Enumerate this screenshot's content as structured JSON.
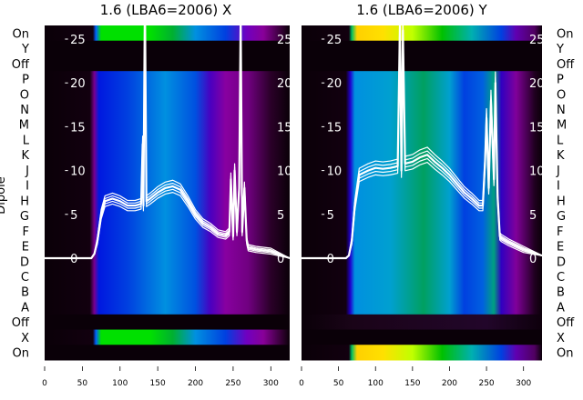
{
  "chart_data": [
    {
      "type": "heatmap",
      "title": "1.6 (LBA6=2006) X",
      "ylabel": "Dipole",
      "row_labels": [
        "On",
        "Y",
        "Off",
        "P",
        "O",
        "N",
        "M",
        "L",
        "K",
        "J",
        "I",
        "H",
        "G",
        "F",
        "E",
        "D",
        "C",
        "B",
        "A",
        "Off",
        "X",
        "On"
      ],
      "row_profiles": [
        "green",
        "dark",
        "dark",
        "blue",
        "blue",
        "blue",
        "blue",
        "blue",
        "blue",
        "blue",
        "blue",
        "blue",
        "blue",
        "blue",
        "blue",
        "blue",
        "blue",
        "blue",
        "blue",
        "dark",
        "green",
        "dark"
      ],
      "xlim": [
        0,
        325
      ],
      "xticks": [
        "0",
        "50",
        "100",
        "150",
        "200",
        "250",
        "300"
      ],
      "overlay_ylim": [
        0,
        25
      ],
      "overlay_yticks": [
        "0",
        "5",
        "10",
        "15",
        "20",
        "25"
      ],
      "overlay_series": [
        {
          "name": "spectrum",
          "x": [
            0,
            62,
            66,
            70,
            75,
            80,
            90,
            100,
            110,
            120,
            128,
            130,
            131,
            133,
            135,
            140,
            150,
            160,
            170,
            180,
            190,
            200,
            210,
            220,
            230,
            240,
            245,
            247,
            250,
            252,
            255,
            258,
            260,
            262,
            265,
            268,
            270,
            280,
            300,
            325
          ],
          "y": [
            0,
            0,
            0.5,
            2,
            5,
            6.5,
            6.8,
            6.5,
            6,
            6,
            6.2,
            13,
            6,
            30,
            6.5,
            6.8,
            7.5,
            8,
            8.2,
            7.8,
            6.5,
            5,
            4,
            3.5,
            2.8,
            2.6,
            3,
            9,
            2.5,
            10,
            3,
            8,
            28,
            3,
            8,
            2,
            1.2,
            1,
            0.8,
            0
          ]
        }
      ]
    },
    {
      "type": "heatmap",
      "title": "1.6 (LBA6=2006) Y",
      "row_labels": [
        "On",
        "Y",
        "Off",
        "P",
        "O",
        "N",
        "M",
        "L",
        "K",
        "J",
        "I",
        "H",
        "G",
        "F",
        "E",
        "D",
        "C",
        "B",
        "A",
        "Off",
        "X",
        "On"
      ],
      "row_profiles": [
        "yellow",
        "dark",
        "dark",
        "cyan",
        "cyan",
        "cyan",
        "cyan",
        "cyan",
        "cyan",
        "cyan",
        "cyan",
        "cyan",
        "cyan",
        "cyan",
        "cyan",
        "cyan",
        "cyan",
        "cyan",
        "cyan",
        "dim",
        "dark",
        "yellow"
      ],
      "xlim": [
        0,
        325
      ],
      "xticks": [
        "0",
        "50",
        "100",
        "150",
        "200",
        "250",
        "300"
      ],
      "overlay_ylim": [
        0,
        25
      ],
      "overlay_yticks": [
        "0",
        "5",
        "10",
        "15",
        "20",
        "25"
      ],
      "overlay_series": [
        {
          "name": "spectrum",
          "x": [
            0,
            60,
            64,
            68,
            72,
            78,
            90,
            100,
            110,
            120,
            130,
            133,
            135,
            137,
            140,
            150,
            160,
            170,
            180,
            190,
            200,
            210,
            220,
            230,
            240,
            245,
            248,
            250,
            253,
            256,
            260,
            262,
            265,
            268,
            270,
            280,
            300,
            325
          ],
          "y": [
            0,
            0,
            0.3,
            2,
            6,
            9.5,
            10,
            10.3,
            10.2,
            10.3,
            10.5,
            27,
            10,
            26,
            10.8,
            11,
            11.5,
            11.8,
            11,
            10.3,
            9.5,
            8.5,
            7.5,
            6.8,
            6,
            6,
            11,
            16,
            8,
            18,
            9,
            20,
            7,
            2.5,
            2.3,
            1.8,
            1,
            0.3
          ]
        }
      ]
    }
  ],
  "profiles": {
    "dark": [
      [
        0,
        "#0a0008"
      ],
      [
        325,
        "#0a0008"
      ]
    ],
    "dim": [
      [
        0,
        "#0a0008"
      ],
      [
        70,
        "#1a0418"
      ],
      [
        250,
        "#22062a"
      ],
      [
        325,
        "#0e000c"
      ]
    ],
    "blue": [
      [
        0,
        "#0a0008"
      ],
      [
        60,
        "#12000f"
      ],
      [
        66,
        "#7a0090"
      ],
      [
        72,
        "#0018e0"
      ],
      [
        110,
        "#0040e0"
      ],
      [
        160,
        "#0090e0"
      ],
      [
        200,
        "#0050e0"
      ],
      [
        220,
        "#4a00c0"
      ],
      [
        240,
        "#8800a0"
      ],
      [
        270,
        "#700080"
      ],
      [
        300,
        "#2a0028"
      ],
      [
        325,
        "#0a0008"
      ]
    ],
    "green": [
      [
        0,
        "#0a0008"
      ],
      [
        64,
        "#12000f"
      ],
      [
        68,
        "#0060ff"
      ],
      [
        75,
        "#00e000"
      ],
      [
        140,
        "#00e000"
      ],
      [
        170,
        "#00b030"
      ],
      [
        200,
        "#0090e0"
      ],
      [
        240,
        "#0040e0"
      ],
      [
        268,
        "#7000c0"
      ],
      [
        290,
        "#880098"
      ],
      [
        315,
        "#300030"
      ],
      [
        325,
        "#0a0008"
      ]
    ],
    "cyan": [
      [
        0,
        "#0a0008"
      ],
      [
        60,
        "#12000f"
      ],
      [
        66,
        "#2000d0"
      ],
      [
        72,
        "#0090e0"
      ],
      [
        120,
        "#00a0d0"
      ],
      [
        165,
        "#00a060"
      ],
      [
        200,
        "#00a0d0"
      ],
      [
        220,
        "#0040e0"
      ],
      [
        245,
        "#0060e0"
      ],
      [
        260,
        "#00a080"
      ],
      [
        270,
        "#3000c0"
      ],
      [
        290,
        "#80009a"
      ],
      [
        315,
        "#200020"
      ],
      [
        325,
        "#0a0008"
      ]
    ],
    "yellow": [
      [
        0,
        "#0a0008"
      ],
      [
        64,
        "#12000f"
      ],
      [
        68,
        "#00c060"
      ],
      [
        75,
        "#ffd000"
      ],
      [
        110,
        "#ffe000"
      ],
      [
        150,
        "#c0ff00"
      ],
      [
        190,
        "#00c000"
      ],
      [
        230,
        "#00b0b0"
      ],
      [
        270,
        "#0040e0"
      ],
      [
        290,
        "#6000b0"
      ],
      [
        315,
        "#500060"
      ],
      [
        325,
        "#0a0008"
      ]
    ]
  }
}
